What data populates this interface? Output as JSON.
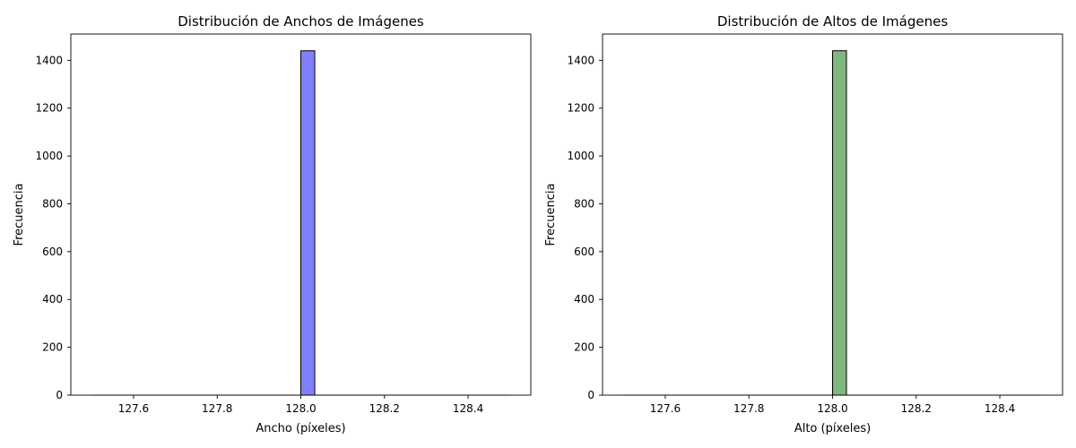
{
  "chart_data": [
    {
      "type": "bar",
      "title": "Distribución de Anchos de Imágenes",
      "xlabel": "Ancho (píxeles)",
      "ylabel": "Frecuencia",
      "xlim": [
        127.45,
        128.55
      ],
      "ylim": [
        0,
        1510
      ],
      "xticks": [
        127.6,
        127.8,
        128.0,
        128.2,
        128.4
      ],
      "xtick_labels": [
        "127.6",
        "127.8",
        "128.0",
        "128.2",
        "128.4"
      ],
      "yticks": [
        0,
        200,
        400,
        600,
        800,
        1000,
        1200,
        1400
      ],
      "ytick_labels": [
        "0",
        "200",
        "400",
        "600",
        "800",
        "1000",
        "1200",
        "1400"
      ],
      "bins": {
        "start": 127.5,
        "end": 128.5,
        "count": 30
      },
      "bars": [
        {
          "x_start": 128.0,
          "x_end": 128.0333,
          "value": 1440
        }
      ],
      "color": "#8080ff",
      "grid": false
    },
    {
      "type": "bar",
      "title": "Distribución de Altos de Imágenes",
      "xlabel": "Alto (píxeles)",
      "ylabel": "Frecuencia",
      "xlim": [
        127.45,
        128.55
      ],
      "ylim": [
        0,
        1510
      ],
      "xticks": [
        127.6,
        127.8,
        128.0,
        128.2,
        128.4
      ],
      "xtick_labels": [
        "127.6",
        "127.8",
        "128.0",
        "128.2",
        "128.4"
      ],
      "yticks": [
        0,
        200,
        400,
        600,
        800,
        1000,
        1200,
        1400
      ],
      "ytick_labels": [
        "0",
        "200",
        "400",
        "600",
        "800",
        "1000",
        "1200",
        "1400"
      ],
      "bins": {
        "start": 127.5,
        "end": 128.5,
        "count": 30
      },
      "bars": [
        {
          "x_start": 128.0,
          "x_end": 128.0333,
          "value": 1440
        }
      ],
      "color": "#7fb77f",
      "grid": false
    }
  ]
}
